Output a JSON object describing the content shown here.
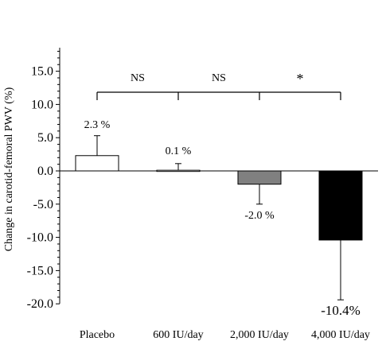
{
  "chart_data": {
    "type": "bar",
    "ylabel": "Change in carotid-femoral PWV (%)",
    "ylim": [
      -20,
      18
    ],
    "yticks": [
      15,
      10,
      5,
      0,
      -5,
      -10,
      -15,
      -20
    ],
    "ytick_labels": [
      "15.0",
      "10.0",
      "5.0",
      "0.0",
      "-5.0",
      "-10.0",
      "-15.0",
      "-20.0"
    ],
    "grid": false,
    "categories": [
      "Placebo",
      "600 IU/day",
      "2,000 IU/day",
      "4,000 IU/day"
    ],
    "values": [
      2.3,
      0.1,
      -2.0,
      -10.4
    ],
    "errors": [
      3.0,
      1.0,
      3.0,
      9.0
    ],
    "value_labels": [
      "2.3 %",
      "0.1 %",
      "-2.0 %",
      "-10.4%"
    ],
    "bar_colors": [
      "#ffffff",
      "#ffffff",
      "#808080",
      "#000000"
    ],
    "significance": [
      {
        "from": 0,
        "to": 1,
        "label": "NS"
      },
      {
        "from": 1,
        "to": 2,
        "label": "NS"
      },
      {
        "from": 2,
        "to": 3,
        "label": "*"
      }
    ]
  }
}
